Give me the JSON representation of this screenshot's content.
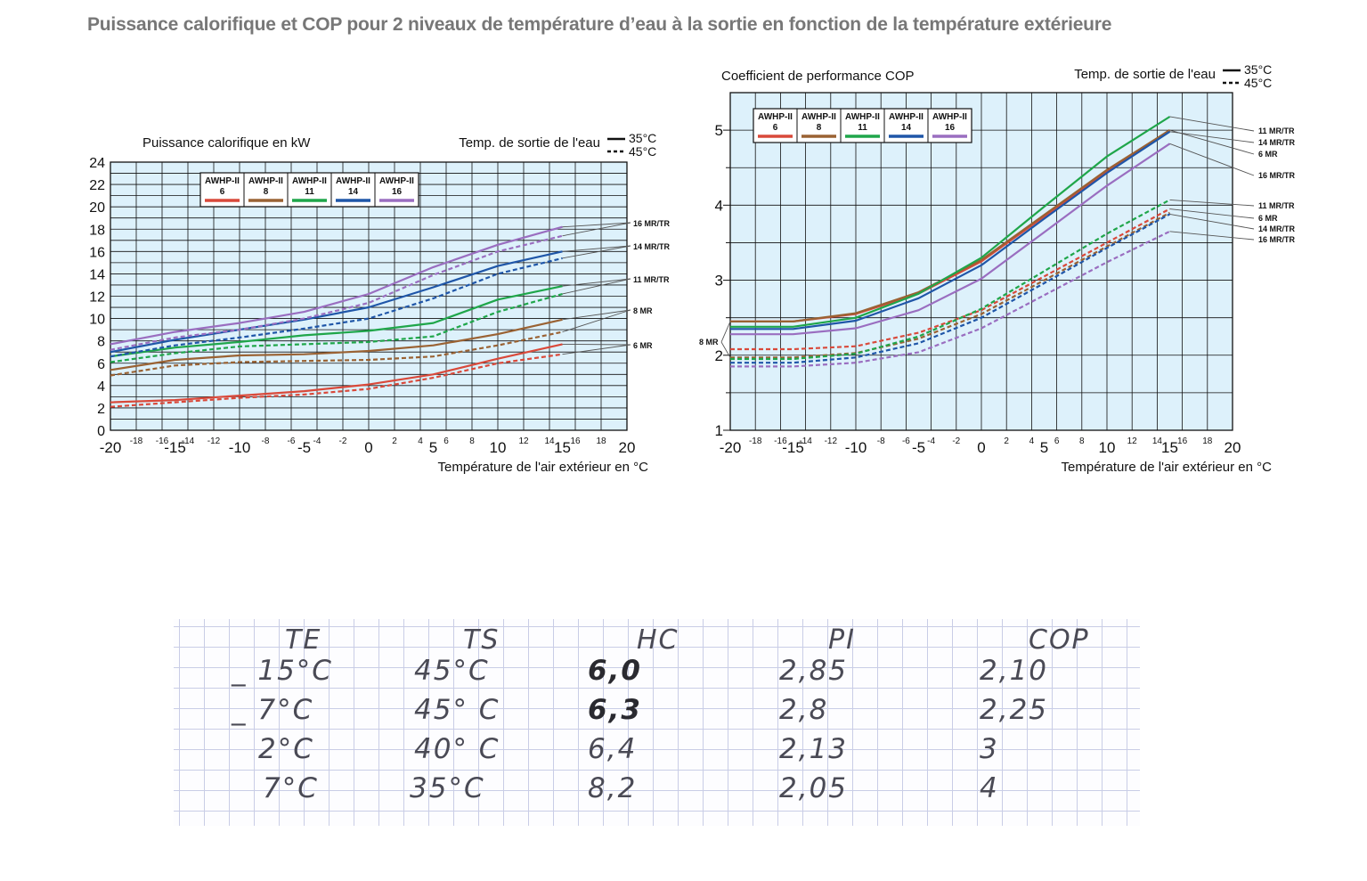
{
  "title": "Puissance calorifique et COP pour 2 niveaux de température d’eau à la sortie en fonction de la température extérieure",
  "legend_water_label": "Temp. de sortie de l'eau",
  "legend_35": "35°C",
  "legend_45": "45°C",
  "models": [
    {
      "line1": "AWHP-II",
      "line2": "6",
      "color": "#d9493a"
    },
    {
      "line1": "AWHP-II",
      "line2": "8",
      "color": "#9a6233"
    },
    {
      "line1": "AWHP-II",
      "line2": "11",
      "color": "#1fa64a"
    },
    {
      "line1": "AWHP-II",
      "line2": "14",
      "color": "#1f56a8"
    },
    {
      "line1": "AWHP-II",
      "line2": "16",
      "color": "#9a6ec0"
    }
  ],
  "chart_data": [
    {
      "type": "line",
      "title": "Puissance calorifique en kW",
      "xlabel": "Température de l'air extérieur en °C",
      "ylabel": "Puissance calorifique en kW",
      "xlim": [
        -20,
        20
      ],
      "ylim": [
        0,
        24
      ],
      "major_xticks": [
        "-20",
        "-15",
        "-10",
        "-5",
        "0",
        "5",
        "10",
        "15",
        "20"
      ],
      "minor_xticks": [
        "-18",
        "-16",
        "-14",
        "-12",
        "-8",
        "-6",
        "-4",
        "-2",
        "2",
        "4",
        "6",
        "8",
        "12",
        "14",
        "16",
        "18"
      ],
      "yticks": [
        "0",
        "2",
        "4",
        "6",
        "8",
        "10",
        "12",
        "14",
        "16",
        "18",
        "20",
        "22",
        "24"
      ],
      "grid": true,
      "legend_position": "top",
      "x": [
        -20,
        -15,
        -10,
        -5,
        0,
        5,
        10,
        15
      ],
      "series": [
        {
          "model": "6",
          "temp": "35°C",
          "values": [
            2.5,
            2.7,
            3.1,
            3.5,
            4.1,
            5.0,
            6.4,
            7.7
          ],
          "label": "6 MR"
        },
        {
          "model": "6",
          "temp": "45°C",
          "values": [
            2.1,
            2.5,
            2.9,
            3.2,
            3.7,
            4.7,
            6.0,
            6.8
          ],
          "label": ""
        },
        {
          "model": "8",
          "temp": "35°C",
          "values": [
            5.4,
            6.3,
            6.7,
            6.8,
            7.1,
            7.6,
            8.6,
            9.9
          ],
          "label": "8 MR"
        },
        {
          "model": "8",
          "temp": "45°C",
          "values": [
            4.9,
            5.8,
            6.1,
            6.2,
            6.3,
            6.6,
            7.6,
            8.8
          ],
          "label": ""
        },
        {
          "model": "11",
          "temp": "35°C",
          "values": [
            6.6,
            7.4,
            7.9,
            8.5,
            8.9,
            9.6,
            11.7,
            12.9
          ],
          "label": "11 MR/TR"
        },
        {
          "model": "11",
          "temp": "45°C",
          "values": [
            6.1,
            6.9,
            7.5,
            7.7,
            7.9,
            8.4,
            10.6,
            12.2
          ],
          "label": ""
        },
        {
          "model": "14",
          "temp": "35°C",
          "values": [
            7.0,
            8.1,
            9.0,
            9.9,
            11.0,
            12.8,
            14.7,
            16.0
          ],
          "label": "14 MR/TR"
        },
        {
          "model": "14",
          "temp": "45°C",
          "values": [
            6.6,
            7.6,
            8.3,
            9.1,
            10.0,
            11.8,
            14.0,
            15.4
          ],
          "label": ""
        },
        {
          "model": "16",
          "temp": "35°C",
          "values": [
            7.7,
            8.8,
            9.6,
            10.6,
            12.2,
            14.6,
            16.6,
            18.2
          ],
          "label": "16 MR/TR"
        },
        {
          "model": "16",
          "temp": "45°C",
          "values": [
            7.2,
            8.3,
            9.0,
            10.0,
            11.4,
            13.9,
            16.0,
            17.4
          ],
          "label": ""
        }
      ]
    },
    {
      "type": "line",
      "title": "Coefficient de performance COP",
      "xlabel": "Température de l'air extérieur en °C",
      "ylabel": "Coefficient de performance COP",
      "xlim": [
        -20,
        20
      ],
      "ylim": [
        1,
        5.5
      ],
      "major_xticks": [
        "-20",
        "-15",
        "-10",
        "-5",
        "0",
        "5",
        "10",
        "15",
        "20"
      ],
      "minor_xticks": [
        "-18",
        "-16",
        "-14",
        "-12",
        "-8",
        "-6",
        "-4",
        "-2",
        "2",
        "4",
        "6",
        "8",
        "12",
        "14",
        "16",
        "18"
      ],
      "yticks": [
        "1",
        "2",
        "3",
        "4",
        "5"
      ],
      "grid": true,
      "legend_position": "top-left",
      "x": [
        -20,
        -15,
        -10,
        -5,
        0,
        5,
        10,
        15
      ],
      "series": [
        {
          "model": "6",
          "temp": "35°C",
          "values": [
            2.45,
            2.45,
            2.55,
            2.82,
            3.25,
            3.85,
            4.45,
            5.0
          ],
          "label": "6 MR"
        },
        {
          "model": "6",
          "temp": "45°C",
          "values": [
            2.08,
            2.08,
            2.12,
            2.3,
            2.6,
            3.05,
            3.5,
            3.95
          ],
          "label": "6 MR"
        },
        {
          "model": "8",
          "temp": "35°C",
          "values": [
            2.45,
            2.45,
            2.56,
            2.84,
            3.27,
            3.87,
            4.47,
            5.0
          ],
          "label": "8 MR"
        },
        {
          "model": "8",
          "temp": "45°C",
          "values": [
            1.97,
            1.97,
            2.03,
            2.22,
            2.55,
            3.0,
            3.45,
            3.9
          ],
          "label": ""
        },
        {
          "model": "11",
          "temp": "35°C",
          "values": [
            2.38,
            2.38,
            2.5,
            2.82,
            3.3,
            3.98,
            4.65,
            5.18
          ],
          "label": "11 MR/TR"
        },
        {
          "model": "11",
          "temp": "45°C",
          "values": [
            1.95,
            1.95,
            2.02,
            2.25,
            2.62,
            3.12,
            3.62,
            4.07
          ],
          "label": "11 MR/TR"
        },
        {
          "model": "14",
          "temp": "35°C",
          "values": [
            2.35,
            2.35,
            2.46,
            2.76,
            3.2,
            3.82,
            4.43,
            4.98
          ],
          "label": "14 MR/TR"
        },
        {
          "model": "14",
          "temp": "45°C",
          "values": [
            1.9,
            1.9,
            1.97,
            2.16,
            2.5,
            2.96,
            3.43,
            3.88
          ],
          "label": "14 MR/TR"
        },
        {
          "model": "16",
          "temp": "35°C",
          "values": [
            2.28,
            2.28,
            2.36,
            2.6,
            3.02,
            3.64,
            4.26,
            4.82
          ],
          "label": "16 MR/TR"
        },
        {
          "model": "16",
          "temp": "45°C",
          "values": [
            1.85,
            1.85,
            1.9,
            2.04,
            2.36,
            2.8,
            3.24,
            3.65
          ],
          "label": "16 MR/TR"
        }
      ]
    }
  ],
  "notes": {
    "headers": [
      "TE",
      "TS",
      "HC",
      "PI",
      "COP"
    ],
    "rows": [
      [
        "_ 15°C",
        "45°C",
        "6,0",
        "2,85",
        "2,10"
      ],
      [
        "_ 7°C",
        "45° C",
        "6,3",
        "2,8",
        "2,25"
      ],
      [
        "2°C",
        "40° C",
        "6,4",
        "2,13",
        "3"
      ],
      [
        "7°C",
        "35°C",
        "8,2",
        "2,05",
        "4"
      ]
    ]
  }
}
